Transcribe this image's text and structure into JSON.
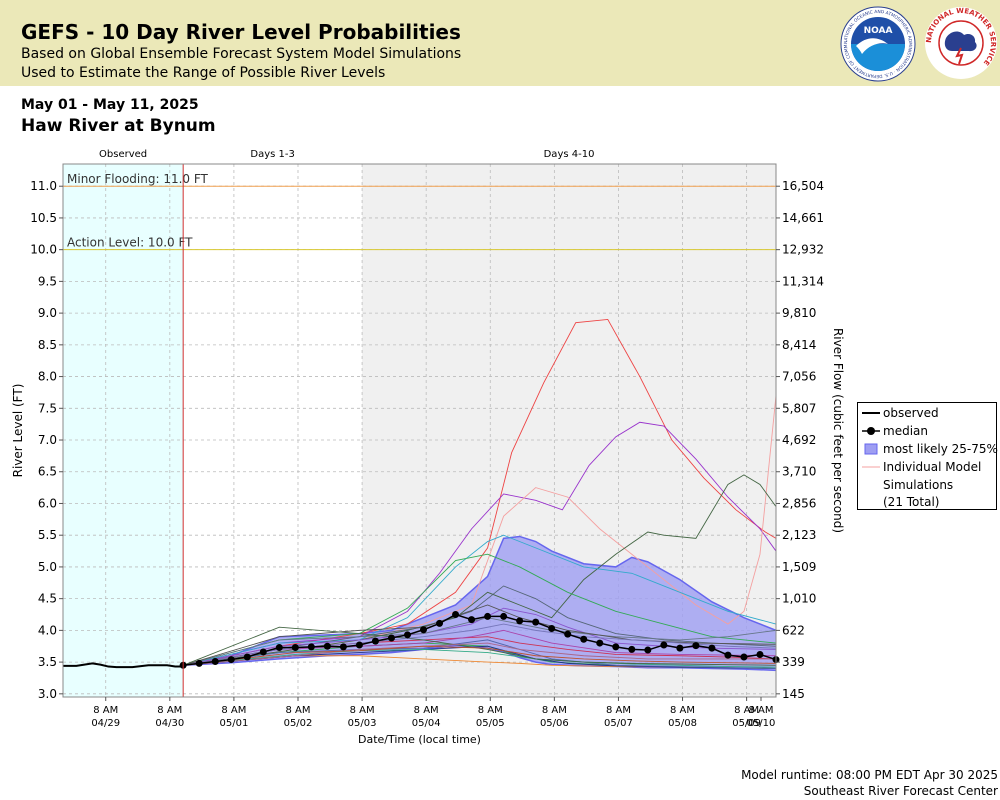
{
  "header": {
    "title": "GEFS - 10 Day River Level Probabilities",
    "subtitle_1": "Based on Global Ensemble Forecast System Model Simulations",
    "subtitle_2": "Used to Estimate the Range of Possible River Levels",
    "noaa_logo_text": "NOAA",
    "noaa_ring_text": "NATIONAL OCEANIC AND ATMOSPHERIC ADMINISTRATION · U.S. DEPARTMENT OF COMMERCE",
    "nws_ring_text": "NATIONAL WEATHER SERVICE"
  },
  "date_range": "May 01 - May 11, 2025",
  "station": "Haw River at Bynum",
  "footer": {
    "runtime": "Model runtime: 08:00 PM EDT Apr 30 2025",
    "center": "Southeast River Forecast Center"
  },
  "colors": {
    "banner": "#ebe8b8",
    "observed_bg": "#e8ffff",
    "forecast_bg": "#f0f0f0",
    "band": "#9e9ef2",
    "band_edge": "#6666ee",
    "minor_flood": "#f0a050",
    "action": "#d8c830",
    "cutoff": "#d03030"
  },
  "chart_data": {
    "type": "line",
    "xlabel": "Date/Time (local time)",
    "ylabel": "River Level (FT)",
    "ylabel_right": "River Flow (cubic feet per second)",
    "x_unit": "hours after 2025-04-29 00:00 local",
    "xlim": [
      -8,
      259
    ],
    "ylim": [
      2.95,
      11.35
    ],
    "grid": true,
    "legend_position": "right",
    "period_labels": [
      {
        "label": "Observed",
        "start": -8,
        "end": 37
      },
      {
        "label": "Days 1-3",
        "start": 37,
        "end": 104
      },
      {
        "label": "Days 4-10",
        "start": 104,
        "end": 259
      }
    ],
    "forecast_start": 37,
    "x_ticks": [
      {
        "x": 8,
        "time": "8 AM",
        "date": "04/29"
      },
      {
        "x": 32,
        "time": "8 AM",
        "date": "04/30"
      },
      {
        "x": 56,
        "time": "8 AM",
        "date": "05/01"
      },
      {
        "x": 80,
        "time": "8 AM",
        "date": "05/02"
      },
      {
        "x": 104,
        "time": "8 AM",
        "date": "05/03"
      },
      {
        "x": 128,
        "time": "8 AM",
        "date": "05/04"
      },
      {
        "x": 152,
        "time": "8 AM",
        "date": "05/05"
      },
      {
        "x": 176,
        "time": "8 AM",
        "date": "05/06"
      },
      {
        "x": 200,
        "time": "8 AM",
        "date": "05/07"
      },
      {
        "x": 224,
        "time": "8 AM",
        "date": "05/08"
      },
      {
        "x": 248,
        "time": "8 AM",
        "date": "05/09"
      },
      {
        "x": 272,
        "time": "8 AM",
        "date": "05/10"
      }
    ],
    "y_ticks": [
      {
        "level": 3.0,
        "label": "3.0",
        "flow": "145"
      },
      {
        "level": 3.5,
        "label": "3.5",
        "flow": "339"
      },
      {
        "level": 4.0,
        "label": "4.0",
        "flow": "622"
      },
      {
        "level": 4.5,
        "label": "4.5",
        "flow": "1,010"
      },
      {
        "level": 5.0,
        "label": "5.0",
        "flow": "1,509"
      },
      {
        "level": 5.5,
        "label": "5.5",
        "flow": "2,123"
      },
      {
        "level": 6.0,
        "label": "6.0",
        "flow": "2,856"
      },
      {
        "level": 6.5,
        "label": "6.5",
        "flow": "3,710"
      },
      {
        "level": 7.0,
        "label": "7.0",
        "flow": "4,692"
      },
      {
        "level": 7.5,
        "label": "7.5",
        "flow": "5,807"
      },
      {
        "level": 8.0,
        "label": "8.0",
        "flow": "7,056"
      },
      {
        "level": 8.5,
        "label": "8.5",
        "flow": "8,414"
      },
      {
        "level": 9.0,
        "label": "9.0",
        "flow": "9,810"
      },
      {
        "level": 9.5,
        "label": "9.5",
        "flow": "11,314"
      },
      {
        "level": 10.0,
        "label": "10.0",
        "flow": "12,932"
      },
      {
        "level": 10.5,
        "label": "10.5",
        "flow": "14,661"
      },
      {
        "level": 11.0,
        "label": "11.0",
        "flow": "16,504"
      }
    ],
    "thresholds": [
      {
        "name": "Minor Flooding: 11.0 FT",
        "level": 11.0
      },
      {
        "name": "Action Level: 10.0 FT",
        "level": 10.0
      }
    ],
    "legend": {
      "observed": "observed",
      "median": "median",
      "band": "most likely 25-75%",
      "sims_1": "Individual Model",
      "sims_2": "Simulations",
      "sims_3": "(21 Total)"
    },
    "observed": {
      "x": [
        -8,
        -3,
        0,
        3,
        6,
        9,
        12,
        18,
        24,
        28,
        31,
        34,
        36,
        37
      ],
      "y": [
        3.44,
        3.44,
        3.46,
        3.48,
        3.46,
        3.43,
        3.42,
        3.42,
        3.45,
        3.45,
        3.45,
        3.43,
        3.43,
        3.45
      ]
    },
    "median": {
      "x": [
        37,
        43,
        49,
        55,
        61,
        67,
        73,
        79,
        85,
        91,
        97,
        103,
        109,
        115,
        121,
        127,
        133,
        139,
        145,
        151,
        157,
        163,
        169,
        175,
        181,
        187,
        193,
        199,
        205,
        211,
        217,
        223,
        229,
        235,
        241,
        247,
        253,
        259
      ],
      "y": [
        3.45,
        3.48,
        3.51,
        3.54,
        3.58,
        3.66,
        3.73,
        3.73,
        3.74,
        3.75,
        3.74,
        3.77,
        3.83,
        3.88,
        3.93,
        4.01,
        4.11,
        4.25,
        4.17,
        4.22,
        4.22,
        4.15,
        4.13,
        4.03,
        3.94,
        3.86,
        3.8,
        3.74,
        3.7,
        3.69,
        3.77,
        3.72,
        3.76,
        3.72,
        3.61,
        3.58,
        3.62,
        3.54
      ]
    },
    "band": {
      "x": [
        37,
        55,
        73,
        91,
        103,
        115,
        127,
        139,
        151,
        157,
        163,
        169,
        175,
        187,
        199,
        205,
        211,
        223,
        235,
        247,
        259
      ],
      "upper": [
        3.45,
        3.6,
        3.9,
        3.93,
        3.95,
        4.0,
        4.2,
        4.4,
        4.85,
        5.45,
        5.48,
        5.4,
        5.25,
        5.05,
        5.0,
        5.15,
        5.08,
        4.8,
        4.45,
        4.2,
        4.0
      ],
      "lower": [
        3.45,
        3.49,
        3.55,
        3.6,
        3.62,
        3.65,
        3.7,
        3.76,
        3.72,
        3.66,
        3.57,
        3.5,
        3.46,
        3.44,
        3.43,
        3.42,
        3.41,
        3.41,
        3.4,
        3.39,
        3.37
      ]
    },
    "simulations": [
      {
        "x": [
          37,
          73,
          103,
          121,
          139,
          151,
          160,
          172,
          184,
          196,
          208,
          220,
          232,
          244,
          255,
          259
        ],
        "y": [
          3.45,
          3.75,
          3.95,
          4.1,
          4.6,
          5.3,
          6.8,
          7.9,
          8.85,
          8.9,
          8.0,
          7.0,
          6.4,
          5.9,
          5.55,
          5.45
        ],
        "color": "#ee4444"
      },
      {
        "x": [
          37,
          73,
          103,
          121,
          133,
          145,
          157,
          169,
          179,
          189,
          199,
          208,
          217,
          229,
          241,
          253,
          259
        ],
        "y": [
          3.45,
          3.8,
          3.9,
          4.3,
          4.9,
          5.6,
          6.15,
          6.05,
          5.9,
          6.6,
          7.05,
          7.28,
          7.22,
          6.7,
          6.1,
          5.6,
          5.25
        ],
        "color": "#9933cc"
      },
      {
        "x": [
          37,
          79,
          103,
          127,
          145,
          157,
          169,
          181,
          193,
          205,
          217,
          229,
          241,
          247,
          253,
          259
        ],
        "y": [
          3.45,
          3.7,
          3.85,
          4.1,
          4.4,
          5.8,
          6.25,
          6.1,
          5.6,
          5.2,
          4.8,
          4.4,
          4.1,
          4.3,
          5.2,
          7.7
        ],
        "color": "#f4a0a0"
      },
      {
        "x": [
          37,
          79,
          103,
          121,
          139,
          151,
          163,
          175,
          187,
          199,
          211,
          217,
          229,
          241,
          247,
          253,
          259
        ],
        "y": [
          3.45,
          3.7,
          3.85,
          4.0,
          4.2,
          4.6,
          4.4,
          4.2,
          4.8,
          5.2,
          5.55,
          5.5,
          5.45,
          6.3,
          6.45,
          6.3,
          5.95
        ],
        "color": "#446644"
      },
      {
        "x": [
          37,
          73,
          103,
          121,
          139,
          151,
          157,
          169,
          187,
          205,
          223,
          241,
          259
        ],
        "y": [
          3.45,
          3.8,
          3.85,
          4.2,
          5.0,
          5.4,
          5.5,
          5.3,
          5.0,
          4.9,
          4.6,
          4.3,
          4.1
        ],
        "color": "#33aacc"
      },
      {
        "x": [
          37,
          73,
          103,
          121,
          139,
          151,
          163,
          181,
          199,
          217,
          235,
          259
        ],
        "y": [
          3.45,
          3.85,
          3.95,
          4.35,
          5.1,
          5.2,
          5.0,
          4.6,
          4.3,
          4.1,
          3.9,
          3.8
        ],
        "color": "#33aa55"
      },
      {
        "x": [
          37,
          79,
          103,
          127,
          145,
          157,
          169,
          181,
          199,
          217,
          235,
          259
        ],
        "y": [
          3.45,
          3.75,
          3.9,
          4.05,
          4.3,
          4.7,
          4.5,
          4.2,
          3.95,
          3.85,
          3.8,
          3.75
        ],
        "color": "#556677"
      },
      {
        "x": [
          37,
          79,
          103,
          127,
          151,
          163,
          175,
          199,
          223,
          241,
          259
        ],
        "y": [
          3.45,
          3.6,
          3.6,
          3.55,
          3.5,
          3.48,
          3.45,
          3.43,
          3.42,
          3.41,
          3.4
        ],
        "color": "#ee8833"
      },
      {
        "x": [
          37,
          73,
          103,
          127,
          151,
          163,
          175,
          199,
          223,
          241,
          259
        ],
        "y": [
          3.45,
          3.65,
          3.75,
          3.8,
          3.75,
          3.6,
          3.5,
          3.45,
          3.42,
          3.41,
          3.4
        ],
        "color": "#33aa55"
      },
      {
        "x": [
          37,
          73,
          103,
          127,
          145,
          157,
          169,
          181,
          199,
          217,
          235,
          259
        ],
        "y": [
          3.45,
          3.75,
          3.85,
          3.95,
          4.1,
          4.35,
          4.25,
          4.05,
          3.8,
          3.75,
          3.72,
          3.7
        ],
        "color": "#8855cc"
      },
      {
        "x": [
          37,
          73,
          103,
          127,
          151,
          163,
          181,
          199,
          223,
          241,
          259
        ],
        "y": [
          3.45,
          3.7,
          3.8,
          3.85,
          3.9,
          3.8,
          3.7,
          3.62,
          3.6,
          3.58,
          3.55
        ],
        "color": "#cc3355"
      },
      {
        "x": [
          37,
          79,
          103,
          127,
          151,
          169,
          181,
          199,
          223,
          259
        ],
        "y": [
          3.45,
          3.6,
          3.65,
          3.7,
          3.75,
          3.55,
          3.48,
          3.44,
          3.42,
          3.4
        ],
        "color": "#223388"
      },
      {
        "x": [
          37,
          73,
          103,
          127,
          151,
          175,
          199,
          223,
          259
        ],
        "y": [
          3.45,
          3.65,
          3.7,
          3.72,
          3.85,
          3.55,
          3.45,
          3.43,
          3.4
        ],
        "color": "#5566aa"
      },
      {
        "x": [
          37,
          73,
          103,
          127,
          145,
          157,
          175,
          199,
          223,
          259
        ],
        "y": [
          3.45,
          3.7,
          3.75,
          3.8,
          3.9,
          4.0,
          3.8,
          3.65,
          3.62,
          3.6
        ],
        "color": "#aa44aa"
      },
      {
        "x": [
          37,
          73,
          103,
          127,
          151,
          175,
          199,
          223,
          241,
          259
        ],
        "y": [
          3.45,
          3.85,
          3.9,
          3.95,
          4.2,
          4.0,
          3.9,
          3.85,
          3.9,
          4.0
        ],
        "color": "#667788"
      },
      {
        "x": [
          37,
          79,
          103,
          127,
          151,
          169,
          187,
          205,
          223,
          241,
          259
        ],
        "y": [
          3.45,
          3.62,
          3.68,
          3.7,
          3.65,
          3.55,
          3.5,
          3.47,
          3.45,
          3.43,
          3.42
        ],
        "color": "#33aa88"
      },
      {
        "x": [
          37,
          73,
          103,
          127,
          151,
          163,
          181,
          205,
          229,
          259
        ],
        "y": [
          3.45,
          3.9,
          4.0,
          4.05,
          4.4,
          4.2,
          4.0,
          3.85,
          3.8,
          3.78
        ],
        "color": "#555555"
      },
      {
        "x": [
          37,
          73,
          103,
          127,
          151,
          169,
          187,
          205,
          223,
          241,
          259
        ],
        "y": [
          3.45,
          4.05,
          3.95,
          3.85,
          3.7,
          3.55,
          3.5,
          3.48,
          3.47,
          3.46,
          3.45
        ],
        "color": "#446644"
      },
      {
        "x": [
          37,
          79,
          103,
          127,
          151,
          163,
          187,
          211,
          235,
          259
        ],
        "y": [
          3.45,
          3.6,
          3.7,
          3.75,
          3.8,
          3.7,
          3.6,
          3.55,
          3.55,
          3.55
        ],
        "color": "#aa6688"
      },
      {
        "x": [
          37,
          73,
          103,
          127,
          145,
          157,
          169,
          187,
          205,
          223,
          241,
          259
        ],
        "y": [
          3.45,
          3.7,
          3.8,
          3.9,
          4.0,
          4.1,
          4.0,
          3.9,
          3.85,
          3.8,
          3.75,
          3.72
        ],
        "color": "#7777bb"
      },
      {
        "x": [
          37,
          79,
          103,
          127,
          151,
          169,
          187,
          205,
          223,
          259
        ],
        "y": [
          3.45,
          3.65,
          3.68,
          3.75,
          3.72,
          3.6,
          3.55,
          3.52,
          3.5,
          3.48
        ],
        "color": "#bb5533"
      }
    ]
  }
}
